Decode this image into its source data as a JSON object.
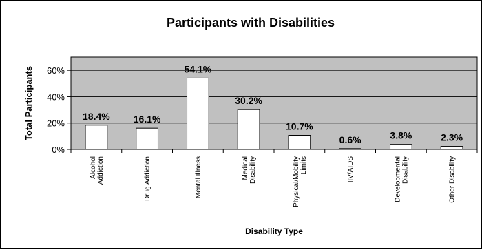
{
  "chart_data": {
    "type": "bar",
    "title": "Participants with Disabilities",
    "xlabel": "Disability Type",
    "ylabel": "Total Participants",
    "ylim": [
      0,
      70
    ],
    "yticks": [
      "0%",
      "20%",
      "40%",
      "60%"
    ],
    "categories": [
      [
        "Alcohol",
        "Addiction"
      ],
      [
        "Drug Addiction"
      ],
      [
        "Mental Illness"
      ],
      [
        "Medical",
        "Disability"
      ],
      [
        "Physical/Mobility",
        "Limits"
      ],
      [
        "HIV/AIDS"
      ],
      [
        "Developmental",
        "Disability"
      ],
      [
        "Other Disability"
      ]
    ],
    "values": [
      18.4,
      16.1,
      54.1,
      30.2,
      10.7,
      0.6,
      3.8,
      2.3
    ],
    "data_labels": [
      "18.4%",
      "16.1%",
      "54.1%",
      "30.2%",
      "10.7%",
      "0.6%",
      "3.8%",
      "2.3%"
    ],
    "grid": true,
    "legend": "none",
    "colors": {
      "plot_background": "#c0c0c0",
      "bar_fill": "#ffffff",
      "outline": "#000000"
    }
  }
}
